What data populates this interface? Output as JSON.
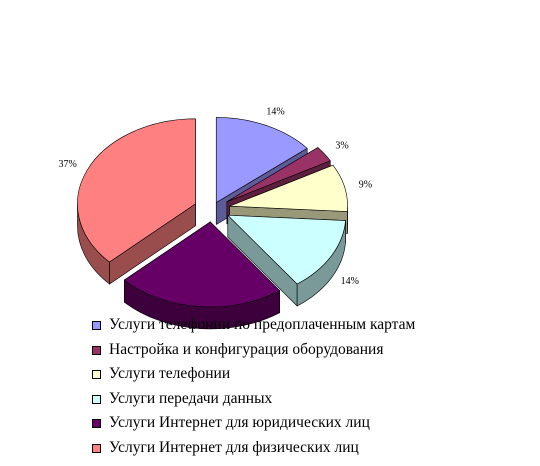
{
  "chart_data": {
    "type": "pie",
    "title": "",
    "series": [
      {
        "name": "Услуги телефонии по предоплаченным картам",
        "value": 14,
        "label": "14%",
        "color": "#9999ff"
      },
      {
        "name": "Настройка и конфигурация оборудования",
        "value": 3,
        "label": "3%",
        "color": "#993366"
      },
      {
        "name": "Услуги телефонии",
        "value": 9,
        "label": "9%",
        "color": "#ffffcc"
      },
      {
        "name": "Услуги передачи данных",
        "value": 14,
        "label": "14%",
        "color": "#ccffff"
      },
      {
        "name": "Услуги Интернет для юридических лиц",
        "value": 23,
        "label": "",
        "color": "#660066"
      },
      {
        "name": "Услуги Интернет для физических лиц",
        "value": 37,
        "label": "37%",
        "color": "#ff8080"
      }
    ],
    "exploded": true,
    "three_d": true,
    "legend_position": "bottom"
  }
}
